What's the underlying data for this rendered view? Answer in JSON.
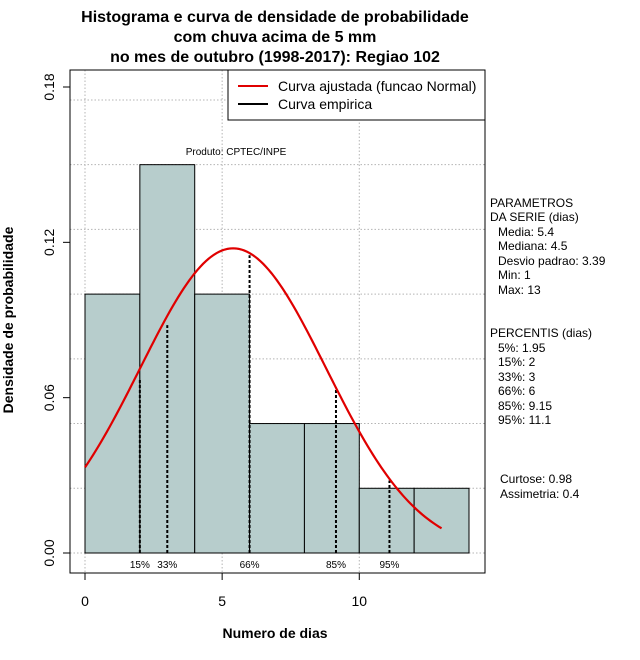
{
  "chart_data": {
    "type": "bar",
    "title_lines": [
      "Histograma e curva de densidade de probabilidade",
      "com chuva acima de 5 mm",
      "no mes de outubro (1998-2017): Regiao 102"
    ],
    "xlabel": "Numero de dias",
    "ylabel": "Densidade de probabilidade",
    "xlim": [
      0,
      14
    ],
    "ylim": [
      0,
      0.18
    ],
    "x_ticks": [
      0,
      5,
      10
    ],
    "x_tick_labels": [
      "0",
      "5",
      "10"
    ],
    "y_ticks": [
      0,
      0.06,
      0.12,
      0.18
    ],
    "y_tick_labels": [
      "0.00",
      "0.06",
      "0.12",
      "0.18"
    ],
    "grid": true,
    "bins": [
      {
        "x0": 0,
        "x1": 2,
        "density": 0.1
      },
      {
        "x0": 2,
        "x1": 4,
        "density": 0.15
      },
      {
        "x0": 4,
        "x1": 6,
        "density": 0.1
      },
      {
        "x0": 6,
        "x1": 8,
        "density": 0.05
      },
      {
        "x0": 8,
        "x1": 10,
        "density": 0.05
      },
      {
        "x0": 10,
        "x1": 12,
        "density": 0.025
      },
      {
        "x0": 12,
        "x1": 14,
        "density": 0.025
      }
    ],
    "series": [
      {
        "name": "Curva ajustada (funcao Normal)",
        "kind": "normal_curve",
        "mean": 5.4,
        "sd": 3.39,
        "x_range": [
          0,
          13
        ],
        "color": "#e00000"
      },
      {
        "name": "Curva empirica",
        "kind": "empirical",
        "color": "#000000"
      }
    ],
    "percentile_markers": [
      {
        "label": "15%",
        "x": 2,
        "y": 0.067
      },
      {
        "label": "33%",
        "x": 3,
        "y": 0.088
      },
      {
        "label": "66%",
        "x": 6,
        "y": 0.115
      },
      {
        "label": "85%",
        "x": 9.15,
        "y": 0.064
      },
      {
        "label": "95%",
        "x": 11.1,
        "y": 0.028
      }
    ],
    "legend_position": "top-right",
    "annotation": "Produto: CPTEC/INPE",
    "parametros": {
      "heading": [
        "PARAMETROS",
        "DA SERIE (dias)"
      ],
      "lines": [
        "Media: 5.4",
        "Mediana: 4.5",
        "Desvio padrao: 3.39",
        "Min: 1",
        "Max: 13"
      ]
    },
    "percentis": {
      "heading": "PERCENTIS (dias)",
      "lines": [
        "5%: 1.95",
        "15%: 2",
        "33%: 3",
        "66%: 6",
        "85%: 9.15",
        "95%: 11.1"
      ]
    },
    "shape_stats": [
      "Curtose: 0.98",
      "Assimetria: 0.4"
    ],
    "colors": {
      "bar_fill": "#b7cdcc",
      "bar_stroke": "#000000",
      "grid": "#b4b4b4",
      "curve": "#e00000"
    }
  }
}
